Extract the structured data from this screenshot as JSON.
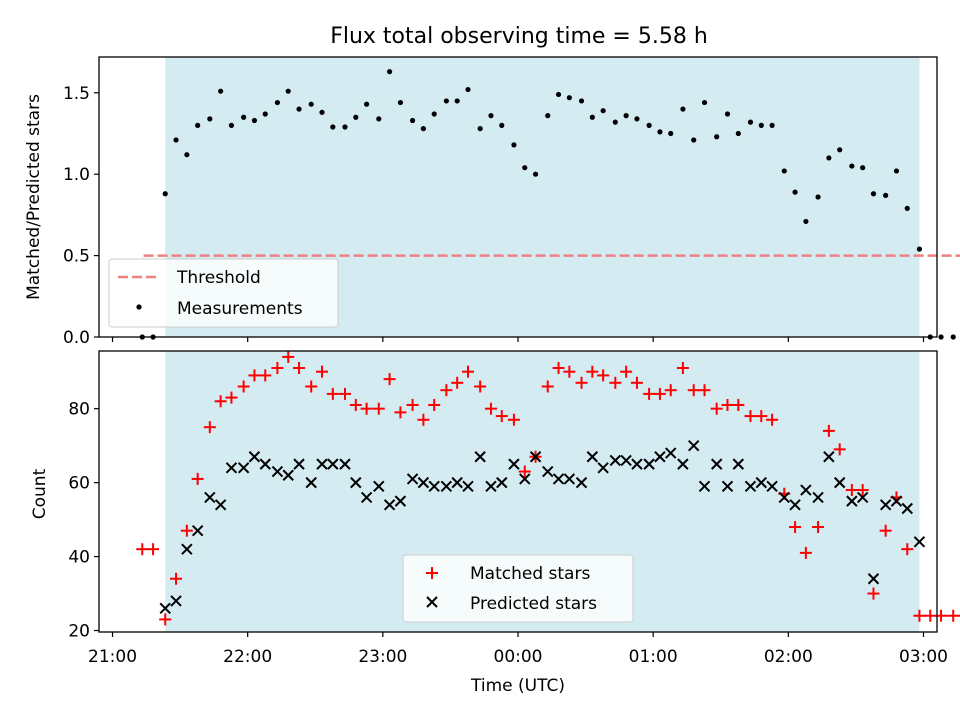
{
  "chart_data": {
    "title": "Flux total observing time = 5.58 h",
    "xlabel": "Time (UTC)",
    "x_unit": "hours_utc",
    "x_range": [
      20.9,
      27.1
    ],
    "observing_window": [
      21.39,
      26.97
    ],
    "x_ticks": [
      {
        "value": 21,
        "label": "21:00"
      },
      {
        "value": 22,
        "label": "22:00"
      },
      {
        "value": 23,
        "label": "23:00"
      },
      {
        "value": 24,
        "label": "00:00"
      },
      {
        "value": 25,
        "label": "01:00"
      },
      {
        "value": 26,
        "label": "02:00"
      },
      {
        "value": 27,
        "label": "03:00"
      }
    ],
    "panels": [
      {
        "id": "ratio",
        "type": "scatter",
        "ylabel": "Matched/Predicted stars",
        "ylim": [
          0,
          1.72
        ],
        "y_ticks": [
          0.0,
          0.5,
          1.0,
          1.5
        ],
        "y_tick_labels": [
          "0.0",
          "0.5",
          "1.0",
          "1.5"
        ],
        "legend": {
          "position": "lower-left",
          "entries": [
            "Threshold",
            "Measurements"
          ]
        },
        "threshold": {
          "name": "Threshold",
          "value": 0.5,
          "x_range": [
            21.23,
            27.27
          ],
          "color": "#f08080",
          "style": "dashed"
        },
        "measurements": {
          "name": "Measurements",
          "color": "#000000",
          "x": [
            21.22,
            21.3,
            21.39,
            21.47,
            21.55,
            21.63,
            21.72,
            21.8,
            21.88,
            21.97,
            22.05,
            22.13,
            22.22,
            22.3,
            22.38,
            22.47,
            22.55,
            22.63,
            22.72,
            22.8,
            22.88,
            22.97,
            23.05,
            23.13,
            23.22,
            23.3,
            23.38,
            23.47,
            23.55,
            23.63,
            23.72,
            23.8,
            23.88,
            23.97,
            24.05,
            24.13,
            24.22,
            24.3,
            24.38,
            24.47,
            24.55,
            24.63,
            24.72,
            24.8,
            24.88,
            24.97,
            25.05,
            25.13,
            25.22,
            25.3,
            25.38,
            25.47,
            25.55,
            25.63,
            25.72,
            25.8,
            25.88,
            25.97,
            26.05,
            26.13,
            26.22,
            26.3,
            26.38,
            26.47,
            26.55,
            26.63,
            26.72,
            26.8,
            26.88,
            26.97,
            27.05,
            27.13,
            27.22,
            27.3
          ],
          "y": [
            0.0,
            0.0,
            0.88,
            1.21,
            1.12,
            1.3,
            1.34,
            1.51,
            1.3,
            1.35,
            1.33,
            1.37,
            1.44,
            1.51,
            1.4,
            1.43,
            1.38,
            1.29,
            1.29,
            1.35,
            1.43,
            1.34,
            1.63,
            1.44,
            1.33,
            1.28,
            1.37,
            1.45,
            1.45,
            1.52,
            1.28,
            1.36,
            1.3,
            1.18,
            1.04,
            1.0,
            1.36,
            1.49,
            1.47,
            1.45,
            1.35,
            1.39,
            1.32,
            1.36,
            1.34,
            1.3,
            1.26,
            1.25,
            1.4,
            1.21,
            1.44,
            1.23,
            1.37,
            1.25,
            1.32,
            1.3,
            1.3,
            1.02,
            0.89,
            0.71,
            0.86,
            1.1,
            1.15,
            1.05,
            1.04,
            0.88,
            0.87,
            1.02,
            0.79,
            0.54,
            0.0,
            0.0,
            0.0,
            0.0
          ]
        }
      },
      {
        "id": "counts",
        "type": "scatter",
        "ylabel": "Count",
        "ylim": [
          19.6,
          95.6
        ],
        "y_ticks": [
          20,
          40,
          60,
          80
        ],
        "y_tick_labels": [
          "20",
          "40",
          "60",
          "80"
        ],
        "legend": {
          "position": "lower-center",
          "entries": [
            "Matched stars",
            "Predicted stars"
          ]
        },
        "series": [
          {
            "name": "Matched stars",
            "marker": "plus",
            "color": "#ff0000",
            "x": [
              21.22,
              21.3,
              21.39,
              21.47,
              21.55,
              21.63,
              21.72,
              21.8,
              21.88,
              21.97,
              22.05,
              22.13,
              22.22,
              22.3,
              22.38,
              22.47,
              22.55,
              22.63,
              22.72,
              22.8,
              22.88,
              22.97,
              23.05,
              23.13,
              23.22,
              23.3,
              23.38,
              23.47,
              23.55,
              23.63,
              23.72,
              23.8,
              23.88,
              23.97,
              24.05,
              24.13,
              24.22,
              24.3,
              24.38,
              24.47,
              24.55,
              24.63,
              24.72,
              24.8,
              24.88,
              24.97,
              25.05,
              25.13,
              25.22,
              25.3,
              25.38,
              25.47,
              25.55,
              25.63,
              25.72,
              25.8,
              25.88,
              25.97,
              26.05,
              26.13,
              26.22,
              26.3,
              26.38,
              26.47,
              26.55,
              26.63,
              26.72,
              26.8,
              26.88,
              26.97,
              27.05,
              27.13,
              27.22,
              27.3
            ],
            "y": [
              42,
              42,
              23,
              34,
              47,
              61,
              75,
              82,
              83,
              86,
              89,
              89,
              91,
              94,
              91,
              86,
              90,
              84,
              84,
              81,
              80,
              80,
              88,
              79,
              81,
              77,
              81,
              85,
              87,
              90,
              86,
              80,
              78,
              77,
              63,
              67,
              86,
              91,
              90,
              87,
              90,
              89,
              87,
              90,
              87,
              84,
              84,
              85,
              91,
              85,
              85,
              80,
              81,
              81,
              78,
              78,
              77,
              57,
              48,
              41,
              48,
              74,
              69,
              58,
              58,
              30,
              47,
              56,
              42,
              24,
              24,
              24,
              24,
              24
            ]
          },
          {
            "name": "Predicted stars",
            "marker": "x",
            "color": "#000000",
            "x": [
              21.39,
              21.47,
              21.55,
              21.63,
              21.72,
              21.8,
              21.88,
              21.97,
              22.05,
              22.13,
              22.22,
              22.3,
              22.38,
              22.47,
              22.55,
              22.63,
              22.72,
              22.8,
              22.88,
              22.97,
              23.05,
              23.13,
              23.22,
              23.3,
              23.38,
              23.47,
              23.55,
              23.63,
              23.72,
              23.8,
              23.88,
              23.97,
              24.05,
              24.13,
              24.22,
              24.3,
              24.38,
              24.47,
              24.55,
              24.63,
              24.72,
              24.8,
              24.88,
              24.97,
              25.05,
              25.13,
              25.22,
              25.3,
              25.38,
              25.47,
              25.55,
              25.63,
              25.72,
              25.8,
              25.88,
              25.97,
              26.05,
              26.13,
              26.22,
              26.3,
              26.38,
              26.47,
              26.55,
              26.63,
              26.72,
              26.8,
              26.88,
              26.97
            ],
            "y": [
              26,
              28,
              42,
              47,
              56,
              54,
              64,
              64,
              67,
              65,
              63,
              62,
              65,
              60,
              65,
              65,
              65,
              60,
              56,
              59,
              54,
              55,
              61,
              60,
              59,
              59,
              60,
              59,
              67,
              59,
              60,
              65,
              61,
              67,
              63,
              61,
              61,
              60,
              67,
              64,
              66,
              66,
              65,
              65,
              67,
              68,
              65,
              70,
              59,
              65,
              59,
              65,
              59,
              60,
              59,
              56,
              54,
              58,
              56,
              67,
              60,
              55,
              56,
              34,
              54,
              55,
              53,
              44
            ]
          }
        ]
      }
    ],
    "colors": {
      "observing_window": "#d3ebf1",
      "threshold": "#f08080",
      "matched": "#ff0000",
      "predicted": "#000000"
    }
  }
}
